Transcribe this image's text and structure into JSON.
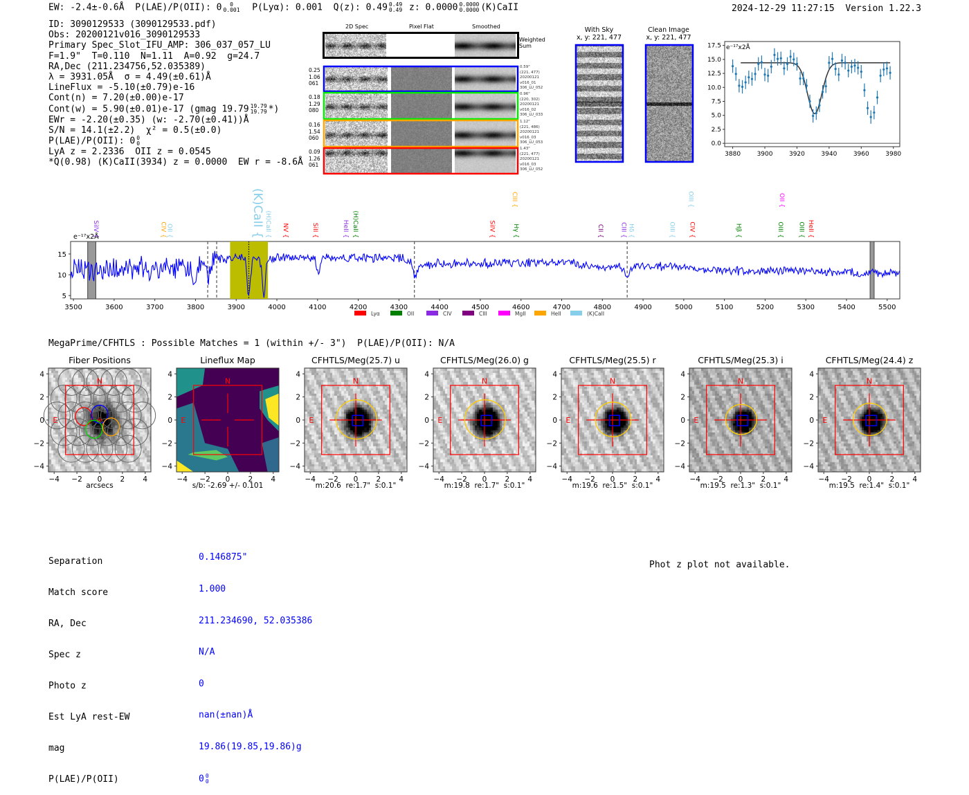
{
  "header": {
    "ew": "EW: -2.4±-0.6Å",
    "plae_label": "P(LAE)/P(OII): 0",
    "plae_sup": "0",
    "plae_sub": "0.001",
    "plya": "P(Lyα): 0.001",
    "qz_label": "Q(z): 0.49",
    "qz_sup": "0.49",
    "qz_sub": "0.49",
    "z_label": "z: 0.0000",
    "z_sup": "0.0000",
    "z_sub": "0.0000",
    "z_line": "(K)CaII",
    "timestamp": "2024-12-29 11:27:15",
    "version": "Version 1.22.3"
  },
  "info": {
    "id": "ID: 3090129533 (3090129533.pdf)",
    "obs": "Obs: 20200121v016_3090129533",
    "primary": "Primary Spec_Slot_IFU_AMP: 306_037_057_LU",
    "params": "F=1.9\"  T=0.110  N=1.11  A=0.92  g=24.7",
    "radec": "RA,Dec (211.234756,52.035389)",
    "lambda": "λ = 3931.05Å  σ = 4.49(±0.61)Å",
    "lineflux": "LineFlux = -5.10(±0.79)e-16",
    "cont_n": "Cont(n) = 7.20(±0.00)e-17",
    "cont_w": "Cont(w) = 5.90(±0.01)e-17 (gmag 19.79",
    "cont_w_sup": "19.79",
    "cont_w_sub": "19.79",
    "cont_w_tail": "*)",
    "ewr": "EWr = -2.20(±0.35) (w: -2.70(±0.41))Å",
    "sn": "S/N = 14.1(±2.2)  χ² = 0.5(±0.0)",
    "plae": "P(LAE)/P(OII): 0",
    "plae_sup": "0",
    "plae_sub": "0",
    "z_lya_oii": "LyA z = 2.2336  OII z = 0.0545",
    "best": "*Q(0.98) (K)CaII(3934) z = 0.0000  EW r = -8.6Å"
  },
  "spec2d": {
    "headers": [
      "2D Spec",
      "Pixel Flat",
      "Smoothed"
    ],
    "weighted_sum": "Weighted\nSum",
    "rows": [
      {
        "left": "0.25\n1.06\n061",
        "right": "0.59\"\n(221, 477)\n20200121\nv016_01\n306_LU_052",
        "color": "#0000ff"
      },
      {
        "left": "0.18\n1.29\n080",
        "right": "0.96\"\n(220, 302)\n20200121\nv016_02\n306_LU_033",
        "color": "#00ee00"
      },
      {
        "left": "0.16\n1.54\n060",
        "right": "1.12\"\n(221, 486)\n20200121\nv016_03\n306_LU_053",
        "color": "#ffa500"
      },
      {
        "left": "0.09\n1.26\n061",
        "right": "1.43\"\n(221, 477)\n20200121\nv016_03\n306_LU_052",
        "color": "#ff0000"
      }
    ]
  },
  "ccd": {
    "with_sky": "With Sky\nx, y: 221, 477",
    "clean": "Clean Image\nx, y: 221, 477"
  },
  "chart_data": [
    {
      "type": "scatter",
      "title": "",
      "ylabel": "e⁻¹⁷x2Å",
      "xlim": [
        3875,
        3984
      ],
      "ylim": [
        -0.6,
        18.2
      ],
      "xticks": [
        "3880",
        "3900",
        "3920",
        "3940",
        "3960",
        "3980"
      ],
      "yticks": [
        "0.0",
        "2.5",
        "5.0",
        "7.5",
        "10.0",
        "12.5",
        "15.0",
        "17.5"
      ],
      "x": [
        3880,
        3882,
        3884,
        3886,
        3888,
        3890,
        3892,
        3894,
        3896,
        3898,
        3900,
        3902,
        3904,
        3906,
        3908,
        3910,
        3912,
        3914,
        3916,
        3918,
        3920,
        3922,
        3924,
        3926,
        3928,
        3930,
        3932,
        3934,
        3936,
        3938,
        3940,
        3942,
        3944,
        3946,
        3948,
        3950,
        3952,
        3954,
        3956,
        3958,
        3960,
        3962,
        3964,
        3966,
        3968,
        3970,
        3972,
        3974,
        3976,
        3978
      ],
      "y": [
        13.8,
        12.4,
        10.3,
        10.1,
        10.9,
        11.8,
        11.5,
        12.4,
        14.2,
        14.5,
        12.3,
        12.1,
        13.7,
        15.8,
        15.1,
        15.2,
        13.4,
        14.2,
        15.5,
        15.0,
        14.2,
        11.6,
        11.6,
        10.3,
        7.5,
        4.9,
        5.4,
        6.8,
        9.2,
        10.2,
        14.4,
        15.1,
        13.3,
        12.3,
        14.8,
        14.4,
        13.0,
        13.7,
        13.9,
        13.5,
        12.8,
        9.5,
        6.3,
        4.7,
        5.5,
        8.2,
        12.1,
        13.2,
        13.4,
        12.6
      ],
      "yerr": 1.2,
      "fit": {
        "continuum": 14.4,
        "center": 3931.05,
        "sigma": 4.49,
        "depth": 9.1,
        "range": [
          3885,
          3978
        ]
      }
    },
    {
      "type": "line",
      "ylabel": "e⁻¹⁷x2Å",
      "xlim": [
        3493,
        5531
      ],
      "ylim": [
        4.2,
        18
      ],
      "xticks": [
        "3500",
        "3600",
        "3700",
        "3800",
        "3900",
        "4000",
        "4100",
        "4200",
        "4300",
        "4400",
        "4500",
        "4600",
        "4700",
        "4800",
        "4900",
        "5000",
        "5100",
        "5200",
        "5300",
        "5400",
        "5500"
      ],
      "yticks": [
        "5",
        "10",
        "15"
      ],
      "continuum": [
        [
          3493,
          11
        ],
        [
          3800,
          11.5
        ],
        [
          3850,
          14
        ],
        [
          4300,
          14
        ],
        [
          4350,
          12.5
        ],
        [
          4700,
          13
        ],
        [
          4800,
          11.8
        ],
        [
          5000,
          12
        ],
        [
          5050,
          11
        ],
        [
          5200,
          11
        ],
        [
          5531,
          10.3
        ]
      ],
      "absorptions": [
        [
          3798,
          4
        ],
        [
          3833,
          4
        ],
        [
          3931,
          9
        ],
        [
          3968,
          9
        ],
        [
          4101,
          4
        ],
        [
          4340,
          3.5
        ],
        [
          4861,
          3
        ]
      ],
      "highlight_band": [
        3885,
        3978
      ],
      "masked_bands": [
        [
          3535,
          3555
        ],
        [
          5458,
          5468
        ]
      ],
      "dashed_lines": [
        3830,
        3852,
        4338,
        4861
      ],
      "dotted_line": 3931,
      "legend": [
        {
          "label": "Lyα",
          "color": "#ff0000"
        },
        {
          "label": "OII",
          "color": "#008000"
        },
        {
          "label": "CIV",
          "color": "#8a2be2"
        },
        {
          "label": "CIII",
          "color": "#800080"
        },
        {
          "label": "MgII",
          "color": "#ff00ff"
        },
        {
          "label": "HeII",
          "color": "#ffa500"
        },
        {
          "label": "(K)CaII",
          "color": "#87ceeb"
        }
      ],
      "line_labels": [
        {
          "name": "SiIV",
          "w": 3546,
          "color": "#8a2be2",
          "tier": 0
        },
        {
          "name": "CIV",
          "w": 3712,
          "color": "#ffa500",
          "tier": 0
        },
        {
          "name": "OII",
          "w": 3727,
          "color": "#87ceeb",
          "tier": 0
        },
        {
          "name": "(K)CaII",
          "w": 3934,
          "color": "#87ceeb",
          "tier": 2
        },
        {
          "name": "(H)CaII",
          "w": 3969,
          "color": "#87ceeb",
          "tier": 0
        },
        {
          "name": "NV",
          "w": 4012,
          "color": "#ff0000",
          "tier": 0
        },
        {
          "name": "SiII",
          "w": 4085,
          "color": "#ff0000",
          "tier": 0
        },
        {
          "name": "HeII",
          "w": 4160,
          "color": "#8a2be2",
          "tier": 0
        },
        {
          "name": "(H)CaII",
          "w": 4184,
          "color": "#008000",
          "tier": 0
        },
        {
          "name": "SiIV",
          "w": 4520,
          "color": "#ff0000",
          "tier": 0
        },
        {
          "name": "CIII",
          "w": 4575,
          "color": "#ffa500",
          "tier": 1
        },
        {
          "name": "Hγ",
          "w": 4578,
          "color": "#008000",
          "tier": 0
        },
        {
          "name": "CII",
          "w": 4786,
          "color": "#800080",
          "tier": 0
        },
        {
          "name": "CIII",
          "w": 4843,
          "color": "#8a2be2",
          "tier": 0
        },
        {
          "name": "Hδ",
          "w": 4862,
          "color": "#87ceeb",
          "tier": 0
        },
        {
          "name": "OIII",
          "w": 4962,
          "color": "#87ceeb",
          "tier": 0
        },
        {
          "name": "OIII",
          "w": 5008,
          "color": "#87ceeb",
          "tier": 1
        },
        {
          "name": "CIV",
          "w": 5011,
          "color": "#ff0000",
          "tier": 0
        },
        {
          "name": "Hβ",
          "w": 5125,
          "color": "#008000",
          "tier": 0
        },
        {
          "name": "OIII",
          "w": 5228,
          "color": "#008000",
          "tier": 0
        },
        {
          "name": "OII",
          "w": 5232,
          "color": "#ff00ff",
          "tier": 1
        },
        {
          "name": "OIII",
          "w": 5280,
          "color": "#008000",
          "tier": 0
        },
        {
          "name": "HeII",
          "w": 5303,
          "color": "#ff0000",
          "tier": 0
        }
      ]
    }
  ],
  "catalog": {
    "title": "MegaPrime/CFHTLS : Possible Matches = 1 (within +/- 3\")  P(LAE)/P(OII): N/A",
    "axis_ticks": [
      "−4",
      "−2",
      "0",
      "2",
      "4"
    ],
    "north": "N",
    "east": "E",
    "cutouts": [
      {
        "title": "Fiber Positions",
        "caption": "arcsecs"
      },
      {
        "title": "Lineflux Map",
        "caption": "s/b: -2.69 +/- 0.101"
      },
      {
        "title": "CFHTLS/Meg(25.7) u",
        "caption": "m:20.6  re:1.7\"  s:0.1\""
      },
      {
        "title": "CFHTLS/Meg(26.0) g",
        "caption": "m:19.8  re:1.7\"  s:0.1\""
      },
      {
        "title": "CFHTLS/Meg(25.5) r",
        "caption": "m:19.6  re:1.5\"  s:0.1\""
      },
      {
        "title": "CFHTLS/Meg(25.3) i",
        "caption": "m:19.5  re:1.3\"  s:0.1\""
      },
      {
        "title": "CFHTLS/Meg(24.4) z",
        "caption": "m:19.5  re:1.4\"  s:0.1\""
      }
    ]
  },
  "match": {
    "labels": [
      "Separation",
      "Match score",
      "RA, Dec",
      "Spec z",
      "Photo z",
      "Est LyA rest-EW",
      "mag",
      "P(LAE)/P(OII)"
    ],
    "values": [
      "0.146875\"",
      "1.000",
      "211.234690, 52.035386",
      "N/A",
      "0",
      "nan(±nan)Å",
      "19.86(19.85,19.86)g",
      "0"
    ],
    "plae_sup": "0",
    "plae_sub": "0",
    "phot_z_note": "Phot z plot not available."
  }
}
